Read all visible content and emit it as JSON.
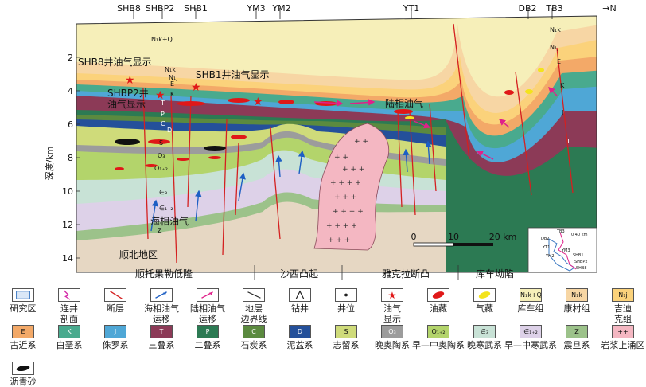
{
  "wells": [
    "SHB8",
    "SHBP2",
    "SHB1",
    "YM3",
    "YM2",
    "YT1",
    "DB2",
    "TB3"
  ],
  "north_arrow": "→N",
  "depth_axis": {
    "label": "深度/km",
    "ticks": [
      "2",
      "4",
      "6",
      "8",
      "10",
      "12",
      "14"
    ]
  },
  "annotations": {
    "shb8": "SHB8井油气显示",
    "shb1": "SHB1井油气显示",
    "shbp2_line1": "SHBP2井",
    "shbp2_line2": "油气显示",
    "continental": "陆相油气",
    "marine": "海相油气",
    "region": "顺北地区"
  },
  "strata_labels": {
    "nkq": "N₁k+Q",
    "n1k": "N₁k",
    "n1j": "N₁j",
    "e": "E",
    "k": "K",
    "t": "T",
    "p": "P",
    "c": "C",
    "d": "D",
    "s": "S",
    "o3": "O₃",
    "o12": "O₁₊₂",
    "e3": "∈₃",
    "e12": "∈₁₊₂",
    "z": "Z",
    "r_n1k": "N₁k",
    "r_n1j": "N₁j",
    "r_e": "E",
    "r_k": "K",
    "r_j": "J",
    "r_t": "T"
  },
  "scale_bar": {
    "ticks": [
      "0",
      "10",
      "20 km"
    ]
  },
  "zones": [
    "顺托果勒低隆",
    "沙西凸起",
    "雅克拉断凸",
    "库车坳陷"
  ],
  "inset": {
    "scale": "0  40 km",
    "labels": [
      "TB3",
      "DB2",
      "YT1",
      "YM3",
      "YM2",
      "SHB1",
      "SHBP2",
      "SHB8"
    ]
  },
  "legend": [
    {
      "label": "研究区",
      "swatch": "#ffffff",
      "symbol": "area"
    },
    {
      "label": "连井\n剖面",
      "swatch": "#ffffff",
      "symbol": "profile"
    },
    {
      "label": "断层",
      "swatch": "#ffffff",
      "symbol": "fault"
    },
    {
      "label": "海相油气\n运移",
      "swatch": "#ffffff",
      "symbol": "marine-arrow"
    },
    {
      "label": "陆相油气\n运移",
      "swatch": "#ffffff",
      "symbol": "continental-arrow"
    },
    {
      "label": "地层\n边界线",
      "swatch": "#ffffff",
      "symbol": "boundary"
    },
    {
      "label": "钻井",
      "swatch": "#ffffff",
      "symbol": "derrick"
    },
    {
      "label": "井位",
      "swatch": "#ffffff",
      "symbol": "dot"
    },
    {
      "label": "油气\n显示",
      "swatch": "#ffffff",
      "symbol": "star"
    },
    {
      "label": "油藏",
      "swatch": "#ffffff",
      "symbol": "oil"
    },
    {
      "label": "气藏",
      "swatch": "#ffffff",
      "symbol": "gas"
    },
    {
      "label": "库车组",
      "swatch": "#f6efb9",
      "code": "N₁k+Q"
    },
    {
      "label": "康村组",
      "swatch": "#f7d6a4",
      "code": "N₁k"
    },
    {
      "label": "吉迪\n克组",
      "swatch": "#fbd27b",
      "code": "N₁j"
    },
    {
      "label": "古近系",
      "swatch": "#f3a968",
      "code": "E"
    },
    {
      "label": "白垩系",
      "swatch": "#49aa8e",
      "code": "K"
    },
    {
      "label": "侏罗系",
      "swatch": "#4fa7d6",
      "code": "J"
    },
    {
      "label": "三叠系",
      "swatch": "#8c3a57",
      "code": "T"
    },
    {
      "label": "二叠系",
      "swatch": "#2c7a53",
      "code": "P"
    },
    {
      "label": "石炭系",
      "swatch": "#5b8a3f",
      "code": "C"
    },
    {
      "label": "泥盆系",
      "swatch": "#24509a",
      "code": "D"
    },
    {
      "label": "志留系",
      "swatch": "#cfdb7a",
      "code": "S"
    },
    {
      "label": "晚奥陶系",
      "swatch": "#9c9c9c",
      "code": "O₃"
    },
    {
      "label": "早—中奥陶系",
      "swatch": "#b3d46b",
      "code": "O₁₊₂"
    },
    {
      "label": "晚寒武系",
      "swatch": "#c8e2d6",
      "code": "∈₃"
    },
    {
      "label": "早—中寒武系",
      "swatch": "#ddd1e8",
      "code": "∈₁₊₂"
    },
    {
      "label": "震旦系",
      "swatch": "#9cc28a",
      "code": "Z"
    },
    {
      "label": "岩浆上涌区",
      "swatch": "#f4b7c2",
      "code": "++"
    },
    {
      "label": "沥青砂",
      "swatch": "#ffffff",
      "symbol": "asphalt"
    }
  ]
}
